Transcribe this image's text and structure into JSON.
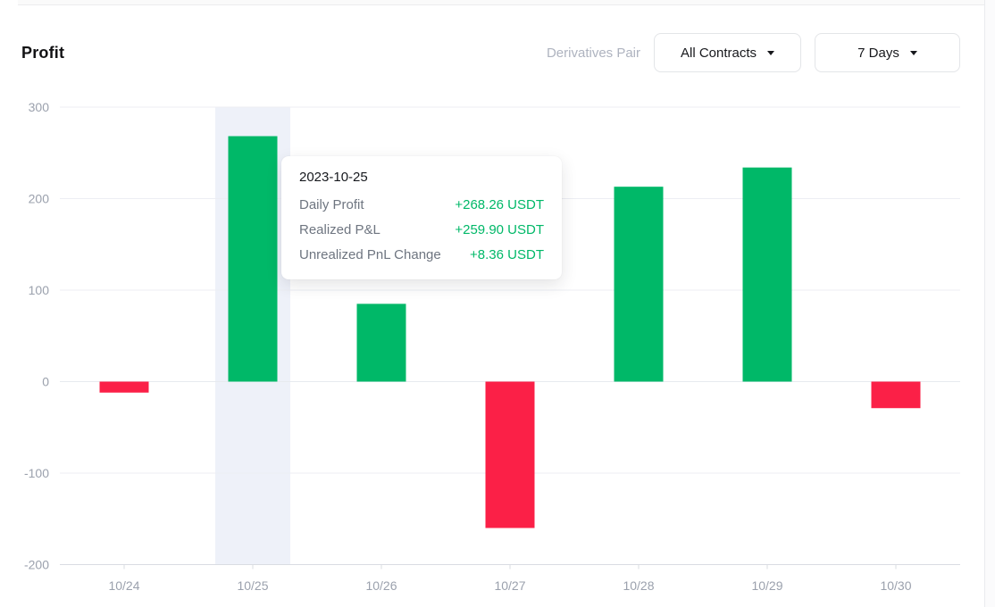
{
  "header": {
    "title": "Profit",
    "pair_label": "Derivatives Pair",
    "contracts_dropdown": {
      "value": "All Contracts"
    },
    "period_dropdown": {
      "value": "7 Days"
    }
  },
  "icons": {
    "dropdown_caret": "caret-down-triangle"
  },
  "colors": {
    "positive": "#00b868",
    "negative": "#fb2047",
    "highlight_band": "#eef1f9",
    "grid": "#eceef3",
    "zero_line": "#e7eaef",
    "axis": "#d9dce2",
    "axis_text": "#9ba1ad"
  },
  "chart_data": {
    "type": "bar",
    "title": "Profit",
    "categories": [
      "10/24",
      "10/25",
      "10/26",
      "10/27",
      "10/28",
      "10/29",
      "10/30"
    ],
    "values": [
      -12,
      268.26,
      85,
      -160,
      213,
      234,
      -29
    ],
    "yticks": [
      300,
      200,
      100,
      0,
      -100,
      -200
    ],
    "ylim": [
      -200,
      300
    ],
    "xlabel": "",
    "ylabel": "",
    "grid": true,
    "legend": false,
    "highlighted_category": "10/25"
  },
  "tooltip": {
    "date": "2023-10-25",
    "rows": [
      {
        "label": "Daily Profit",
        "value": "+268.26 USDT"
      },
      {
        "label": "Realized P&L",
        "value": "+259.90 USDT"
      },
      {
        "label": "Unrealized PnL Change",
        "value": "+8.36 USDT"
      }
    ]
  }
}
